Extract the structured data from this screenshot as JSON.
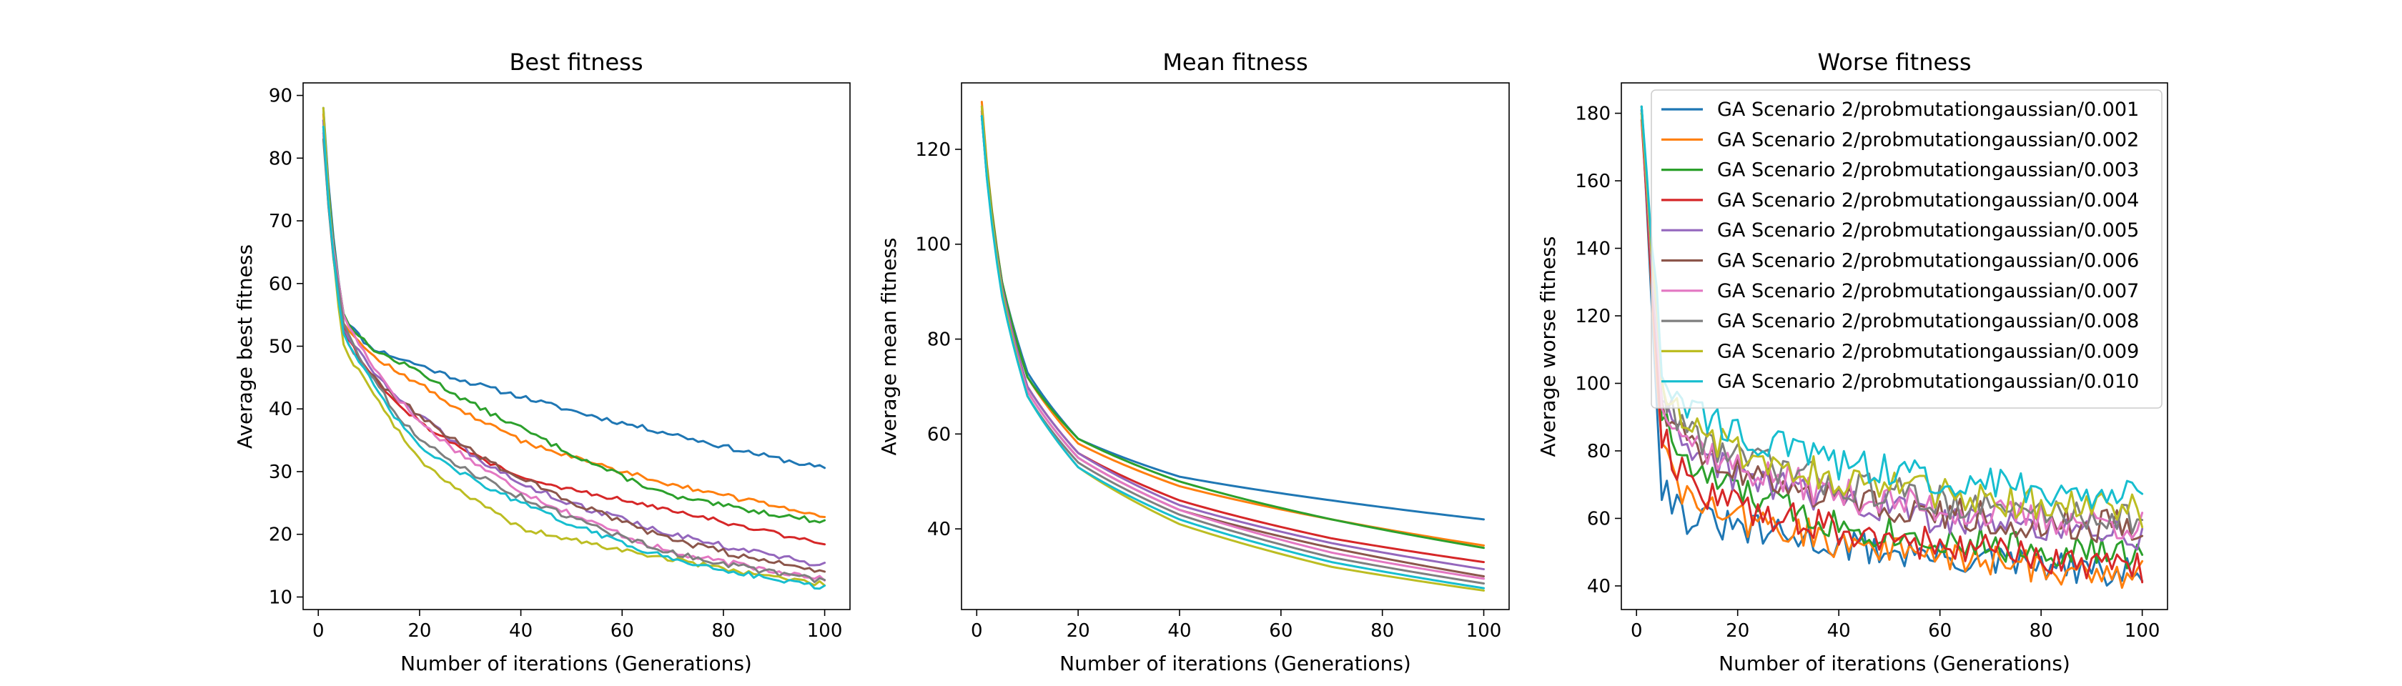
{
  "figure": {
    "legend_entries": [
      "GA Scenario 2/probmutationgaussian/0.001",
      "GA Scenario 2/probmutationgaussian/0.002",
      "GA Scenario 2/probmutationgaussian/0.003",
      "GA Scenario 2/probmutationgaussian/0.004",
      "GA Scenario 2/probmutationgaussian/0.005",
      "GA Scenario 2/probmutationgaussian/0.006",
      "GA Scenario 2/probmutationgaussian/0.007",
      "GA Scenario 2/probmutationgaussian/0.008",
      "GA Scenario 2/probmutationgaussian/0.009",
      "GA Scenario 2/probmutationgaussian/0.010"
    ],
    "series_colors": [
      "#1f77b4",
      "#ff7f0e",
      "#2ca02c",
      "#d62728",
      "#9467bd",
      "#8c564b",
      "#e377c2",
      "#7f7f7f",
      "#bcbd22",
      "#17becf"
    ],
    "legend_location": "upper right of third panel"
  },
  "chart_data": [
    {
      "type": "line",
      "title": "Best fitness",
      "xlabel": "Number of iterations (Generations)",
      "ylabel": "Average best fitness",
      "xlim": [
        -3,
        105
      ],
      "ylim": [
        8,
        92
      ],
      "xticks": [
        0,
        20,
        40,
        60,
        80,
        100
      ],
      "yticks": [
        10,
        20,
        30,
        40,
        50,
        60,
        70,
        80,
        90
      ],
      "model": "x0=1, decay exponent p=0.35; anchors at x=1,5,10,20,40,70,100",
      "series": [
        {
          "name": "GA Scenario 2/probmutationgaussian/0.001",
          "anchors": [
            88,
            55,
            50,
            47,
            42,
            36,
            30.5
          ],
          "noise": 0.4,
          "seed": 11
        },
        {
          "name": "GA Scenario 2/probmutationgaussian/0.002",
          "anchors": [
            87,
            54,
            49,
            44,
            35,
            28,
            23
          ],
          "noise": 0.4,
          "seed": 12
        },
        {
          "name": "GA Scenario 2/probmutationgaussian/0.003",
          "anchors": [
            86,
            55,
            50,
            46,
            37,
            26,
            22
          ],
          "noise": 0.4,
          "seed": 13
        },
        {
          "name": "GA Scenario 2/probmutationgaussian/0.004",
          "anchors": [
            85,
            53,
            46,
            38,
            29,
            24,
            18.5
          ],
          "noise": 0.4,
          "seed": 14
        },
        {
          "name": "GA Scenario 2/probmutationgaussian/0.005",
          "anchors": [
            86,
            53,
            47,
            39,
            28,
            20,
            15
          ],
          "noise": 0.5,
          "seed": 15
        },
        {
          "name": "GA Scenario 2/probmutationgaussian/0.006",
          "anchors": [
            84,
            52,
            46,
            39,
            29,
            19,
            14
          ],
          "noise": 0.5,
          "seed": 16
        },
        {
          "name": "GA Scenario 2/probmutationgaussian/0.007",
          "anchors": [
            84,
            55,
            48,
            38,
            27,
            17,
            13
          ],
          "noise": 0.5,
          "seed": 17
        },
        {
          "name": "GA Scenario 2/probmutationgaussian/0.008",
          "anchors": [
            83,
            54,
            46,
            35,
            26,
            17,
            12.5
          ],
          "noise": 0.5,
          "seed": 18
        },
        {
          "name": "GA Scenario 2/probmutationgaussian/0.009",
          "anchors": [
            88,
            50,
            44,
            32,
            21,
            16,
            12
          ],
          "noise": 0.4,
          "seed": 19
        },
        {
          "name": "GA Scenario 2/probmutationgaussian/0.010",
          "anchors": [
            85,
            52,
            45,
            34,
            25,
            16,
            11.5
          ],
          "noise": 0.4,
          "seed": 20
        }
      ]
    },
    {
      "type": "line",
      "title": "Mean fitness",
      "xlabel": "Number of iterations (Generations)",
      "ylabel": "Average mean fitness",
      "xlim": [
        -3,
        105
      ],
      "ylim": [
        23,
        134
      ],
      "xticks": [
        0,
        20,
        40,
        60,
        80,
        100
      ],
      "yticks": [
        40,
        60,
        80,
        100,
        120
      ],
      "model": "x0=1, decay exponent p=0.45; anchors at x=1,5,10,20,40,70,100",
      "series": [
        {
          "name": "GA Scenario 2/probmutationgaussian/0.001",
          "anchors": [
            127,
            92,
            73,
            59,
            51,
            46,
            42
          ],
          "noise": 0,
          "seed": 21
        },
        {
          "name": "GA Scenario 2/probmutationgaussian/0.002",
          "anchors": [
            130,
            92,
            72,
            58,
            49,
            42,
            36.5
          ],
          "noise": 0,
          "seed": 22
        },
        {
          "name": "GA Scenario 2/probmutationgaussian/0.003",
          "anchors": [
            129,
            92,
            72,
            59,
            50,
            42,
            36
          ],
          "noise": 0,
          "seed": 23
        },
        {
          "name": "GA Scenario 2/probmutationgaussian/0.004",
          "anchors": [
            128,
            91,
            70,
            56,
            46,
            38,
            33
          ],
          "noise": 0,
          "seed": 24
        },
        {
          "name": "GA Scenario 2/probmutationgaussian/0.005",
          "anchors": [
            128,
            91,
            70,
            56,
            45,
            37,
            31.5
          ],
          "noise": 0,
          "seed": 25
        },
        {
          "name": "GA Scenario 2/probmutationgaussian/0.006",
          "anchors": [
            127,
            90,
            69,
            55,
            44,
            36,
            30
          ],
          "noise": 0,
          "seed": 26
        },
        {
          "name": "GA Scenario 2/probmutationgaussian/0.007",
          "anchors": [
            127,
            90,
            69,
            55,
            44,
            35,
            29.5
          ],
          "noise": 0,
          "seed": 27
        },
        {
          "name": "GA Scenario 2/probmutationgaussian/0.008",
          "anchors": [
            127,
            90,
            68,
            54,
            43,
            34,
            28.5
          ],
          "noise": 0,
          "seed": 28
        },
        {
          "name": "GA Scenario 2/probmutationgaussian/0.009",
          "anchors": [
            129,
            90,
            68,
            53,
            41,
            32,
            27
          ],
          "noise": 0,
          "seed": 29
        },
        {
          "name": "GA Scenario 2/probmutationgaussian/0.010",
          "anchors": [
            127,
            89,
            68,
            53,
            42,
            33,
            27.5
          ],
          "noise": 0,
          "seed": 30
        }
      ]
    },
    {
      "type": "line",
      "title": "Worse fitness",
      "xlabel": "Number of iterations (Generations)",
      "ylabel": "Average worse fitness",
      "xlim": [
        -3,
        105
      ],
      "ylim": [
        33,
        189
      ],
      "xticks": [
        0,
        20,
        40,
        60,
        80,
        100
      ],
      "yticks": [
        40,
        60,
        80,
        100,
        120,
        140,
        160,
        180
      ],
      "model": "x0=1, decay exponent p=1.0; anchors at x=1,5,10,20,40,70,100",
      "series": [
        {
          "name": "GA Scenario 2/probmutationgaussian/0.001",
          "anchors": [
            181,
            70,
            60,
            57,
            52,
            47,
            43
          ],
          "noise": 5,
          "seed": 31
        },
        {
          "name": "GA Scenario 2/probmutationgaussian/0.002",
          "anchors": [
            180,
            80,
            65,
            60,
            53,
            47,
            43
          ],
          "noise": 5,
          "seed": 32
        },
        {
          "name": "GA Scenario 2/probmutationgaussian/0.003",
          "anchors": [
            182,
            90,
            75,
            68,
            58,
            52,
            49
          ],
          "noise": 5,
          "seed": 33
        },
        {
          "name": "GA Scenario 2/probmutationgaussian/0.004",
          "anchors": [
            178,
            85,
            70,
            64,
            56,
            50,
            45
          ],
          "noise": 5,
          "seed": 34
        },
        {
          "name": "GA Scenario 2/probmutationgaussian/0.005",
          "anchors": [
            180,
            92,
            80,
            72,
            65,
            58,
            55
          ],
          "noise": 5,
          "seed": 35
        },
        {
          "name": "GA Scenario 2/probmutationgaussian/0.006",
          "anchors": [
            181,
            95,
            82,
            74,
            66,
            60,
            57
          ],
          "noise": 5,
          "seed": 36
        },
        {
          "name": "GA Scenario 2/probmutationgaussian/0.007",
          "anchors": [
            180,
            96,
            84,
            75,
            67,
            61,
            58
          ],
          "noise": 5,
          "seed": 37
        },
        {
          "name": "GA Scenario 2/probmutationgaussian/0.008",
          "anchors": [
            182,
            98,
            86,
            78,
            70,
            63,
            60
          ],
          "noise": 5,
          "seed": 38
        },
        {
          "name": "GA Scenario 2/probmutationgaussian/0.009",
          "anchors": [
            180,
            100,
            88,
            80,
            72,
            65,
            62
          ],
          "noise": 5,
          "seed": 39
        },
        {
          "name": "GA Scenario 2/probmutationgaussian/0.010",
          "anchors": [
            182,
            105,
            92,
            85,
            76,
            70,
            66
          ],
          "noise": 5,
          "seed": 40
        }
      ]
    }
  ]
}
